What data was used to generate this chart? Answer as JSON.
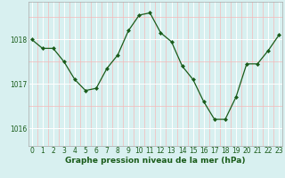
{
  "x": [
    0,
    1,
    2,
    3,
    4,
    5,
    6,
    7,
    8,
    9,
    10,
    11,
    12,
    13,
    14,
    15,
    16,
    17,
    18,
    19,
    20,
    21,
    22,
    23
  ],
  "y": [
    1018.0,
    1017.8,
    1017.8,
    1017.5,
    1017.1,
    1016.85,
    1016.9,
    1017.35,
    1017.65,
    1018.2,
    1018.55,
    1018.6,
    1018.15,
    1017.95,
    1017.4,
    1017.1,
    1016.6,
    1016.2,
    1016.2,
    1016.7,
    1017.45,
    1017.45,
    1017.75,
    1018.1
  ],
  "line_color": "#1a5c1a",
  "marker": "D",
  "marker_size": 2.0,
  "bg_color": "#d8f0f0",
  "grid_major_color": "#ffffff",
  "grid_minor_color": "#f5b8b8",
  "xlabel": "Graphe pression niveau de la mer (hPa)",
  "xlabel_fontsize": 6.5,
  "xlabel_color": "#1a5c1a",
  "yticks": [
    1016,
    1017,
    1018
  ],
  "ylim": [
    1015.6,
    1018.85
  ],
  "xlim": [
    -0.3,
    23.3
  ],
  "tick_fontsize": 5.5,
  "tick_color": "#1a5c1a",
  "linewidth": 0.9
}
